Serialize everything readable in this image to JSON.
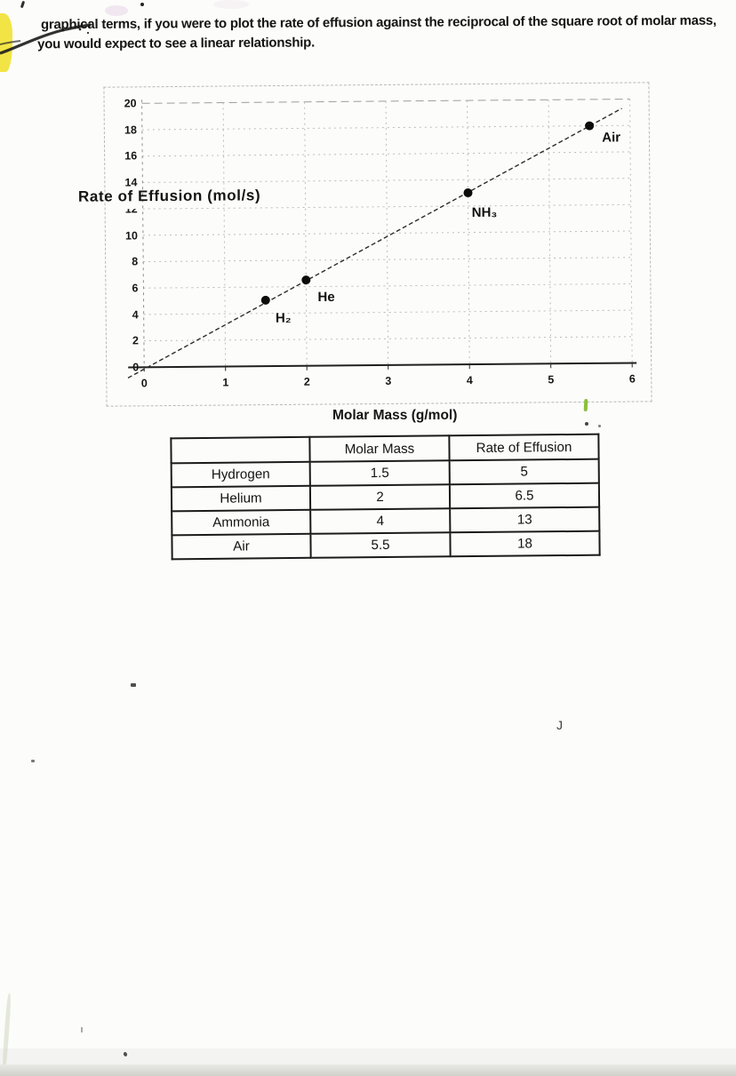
{
  "document": {
    "intro": {
      "line1": "graphical terms, if you were to plot the rate of effusion against the reciprocal of the square root of molar mass,",
      "line2": "you would expect to see a linear relationship."
    }
  },
  "chart_data": {
    "type": "scatter",
    "title": "",
    "xlabel": "Molar Mass (g/mol)",
    "ylabel": "Rate of Effusion (mol/s)",
    "xlim": [
      0,
      6
    ],
    "ylim": [
      0,
      20
    ],
    "x_ticks": [
      0,
      1,
      2,
      3,
      4,
      5,
      6
    ],
    "y_ticks": [
      0,
      2,
      4,
      6,
      8,
      10,
      12,
      14,
      16,
      18,
      20
    ],
    "grid": true,
    "points": [
      {
        "label": "H₂",
        "substance": "Hydrogen",
        "x": 1.5,
        "y": 5
      },
      {
        "label": "He",
        "substance": "Helium",
        "x": 2,
        "y": 6.5
      },
      {
        "label": "NH₃",
        "substance": "Ammonia",
        "x": 4,
        "y": 13
      },
      {
        "label": "Air",
        "substance": "Air",
        "x": 5.5,
        "y": 18
      }
    ],
    "trendline": {
      "style": "dashed",
      "x_start": -0.2,
      "y_start": -0.8,
      "x_end": 5.9,
      "y_end": 19.3
    }
  },
  "table": {
    "headers": [
      "",
      "Molar Mass",
      "Rate of Effusion"
    ],
    "rows": [
      [
        "Hydrogen",
        "1.5",
        "5"
      ],
      [
        "Helium",
        "2",
        "6.5"
      ],
      [
        "Ammonia",
        "4",
        "13"
      ],
      [
        "Air",
        "5.5",
        "18"
      ]
    ]
  },
  "annotations": {
    "handwritten_j": "J"
  }
}
